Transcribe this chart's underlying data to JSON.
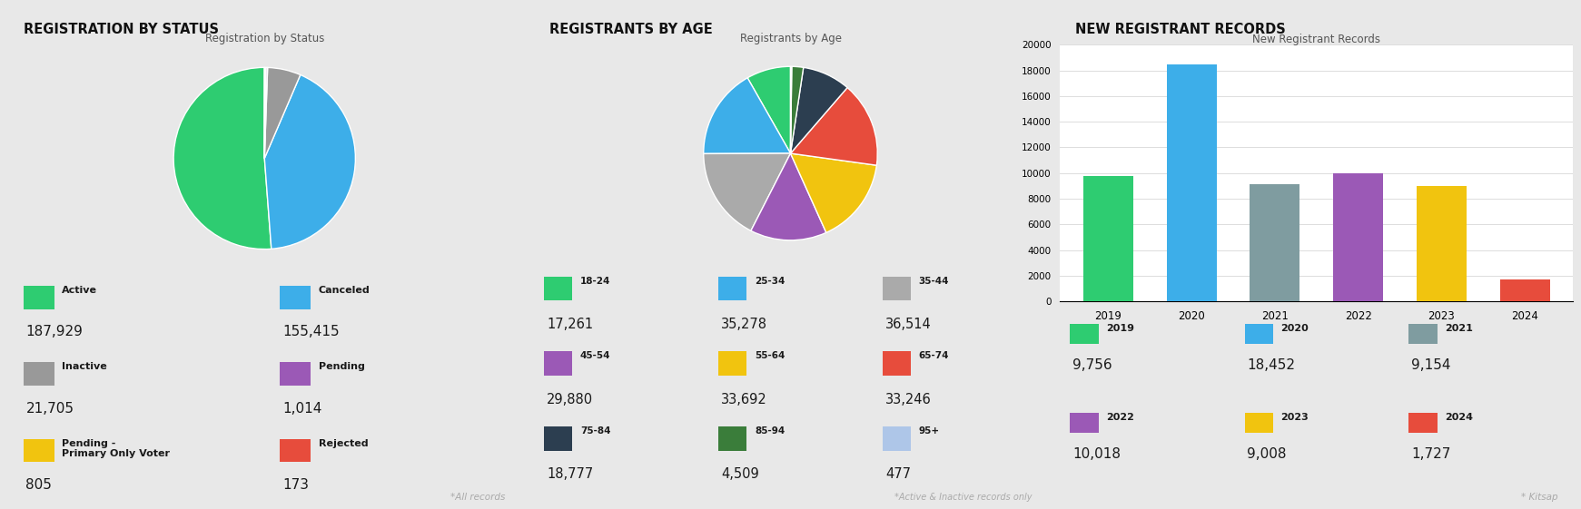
{
  "bg_color": "#e8e8e8",
  "panel_bg": "#ffffff",
  "section1_title": "REGISTRATION BY STATUS",
  "pie1_title": "Registration by Status",
  "pie1_slices": [
    187929,
    155415,
    21705,
    1014,
    805,
    173
  ],
  "pie1_colors": [
    "#2ecc71",
    "#3daee9",
    "#999999",
    "#9b59b6",
    "#f1c40f",
    "#e74c3c"
  ],
  "pie1_labels": [
    "Active",
    "Canceled",
    "Inactive",
    "Pending",
    "Pending -\nPrimary Only Voter",
    "Rejected"
  ],
  "pie1_values_str": [
    "187,929",
    "155,415",
    "21,705",
    "1,014",
    "805",
    "173"
  ],
  "pie1_note": "*All records",
  "section2_title": "REGISTRANTS BY AGE",
  "pie2_title": "Registrants by Age",
  "pie2_slices": [
    17261,
    35278,
    36514,
    29880,
    33692,
    33246,
    18777,
    4509,
    477
  ],
  "pie2_colors": [
    "#2ecc71",
    "#3daee9",
    "#aaaaaa",
    "#9b59b6",
    "#f1c40f",
    "#e74c3c",
    "#2c3e50",
    "#3a7d3a",
    "#aec6e8"
  ],
  "pie2_labels": [
    "18-24",
    "25-34",
    "35-44",
    "45-54",
    "55-64",
    "65-74",
    "75-84",
    "85-94",
    "95+"
  ],
  "pie2_values_str": [
    "17,261",
    "35,278",
    "36,514",
    "29,880",
    "33,692",
    "33,246",
    "18,777",
    "4,509",
    "477"
  ],
  "pie2_note": "*Active & Inactive records only",
  "section3_title": "NEW REGISTRANT RECORDS",
  "bar_title": "New Registrant Records",
  "bar_years": [
    "2019",
    "2020",
    "2021",
    "2022",
    "2023",
    "2024"
  ],
  "bar_values": [
    9756,
    18452,
    9154,
    10018,
    9008,
    1727
  ],
  "bar_colors": [
    "#2ecc71",
    "#3daee9",
    "#7f9ca0",
    "#9b59b6",
    "#f1c40f",
    "#e74c3c"
  ],
  "bar_ylim": [
    0,
    20000
  ],
  "bar_yticks": [
    0,
    2000,
    4000,
    6000,
    8000,
    10000,
    12000,
    14000,
    16000,
    18000,
    20000
  ],
  "bar_values_str": [
    "9,756",
    "18,452",
    "9,154",
    "10,018",
    "9,008",
    "1,727"
  ],
  "bar_note": "* Kitsap"
}
